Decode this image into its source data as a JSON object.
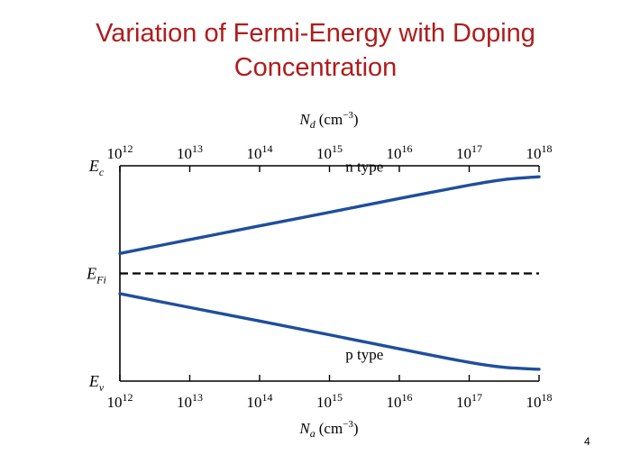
{
  "slide": {
    "title_line1": "Variation of Fermi-Energy with Doping",
    "title_line2": "Concentration",
    "page_number": "4"
  },
  "chart_data": {
    "type": "line",
    "top_axis": {
      "symbol": "N",
      "subscript": "d",
      "unit": "(cm",
      "unit_exp": "−3",
      "unit_close": ")"
    },
    "bottom_axis": {
      "symbol": "N",
      "subscript": "a",
      "unit": "(cm",
      "unit_exp": "−3",
      "unit_close": ")"
    },
    "x_ticks": [
      {
        "base": "10",
        "exp": "12",
        "value": 12
      },
      {
        "base": "10",
        "exp": "13",
        "value": 13
      },
      {
        "base": "10",
        "exp": "14",
        "value": 14
      },
      {
        "base": "10",
        "exp": "15",
        "value": 15
      },
      {
        "base": "10",
        "exp": "16",
        "value": 16
      },
      {
        "base": "10",
        "exp": "17",
        "value": 17
      },
      {
        "base": "10",
        "exp": "18",
        "value": 18
      }
    ],
    "x_scale": "log",
    "xlim": [
      12,
      18
    ],
    "ylim": [
      0,
      1
    ],
    "y_levels": [
      {
        "symbol": "E",
        "subscript": "c",
        "value": 1.0
      },
      {
        "symbol": "E",
        "subscript": "Fi",
        "value": 0.5
      },
      {
        "symbol": "E",
        "subscript": "v",
        "value": 0.0
      }
    ],
    "series": [
      {
        "name": "n type",
        "color": "#1f4e9c",
        "points": [
          [
            12,
            0.593
          ],
          [
            13,
            0.657
          ],
          [
            14,
            0.721
          ],
          [
            15,
            0.784
          ],
          [
            16,
            0.848
          ],
          [
            17,
            0.91
          ],
          [
            17.5,
            0.936
          ],
          [
            18,
            0.949
          ]
        ]
      },
      {
        "name": "p type",
        "color": "#1f4e9c",
        "points": [
          [
            12,
            0.406
          ],
          [
            13,
            0.342
          ],
          [
            14,
            0.279
          ],
          [
            15,
            0.215
          ],
          [
            16,
            0.15
          ],
          [
            17,
            0.087
          ],
          [
            17.5,
            0.064
          ],
          [
            18,
            0.055
          ]
        ]
      }
    ],
    "reference_line": {
      "level": "E_Fi",
      "style": "dashed",
      "color": "#000000"
    }
  }
}
